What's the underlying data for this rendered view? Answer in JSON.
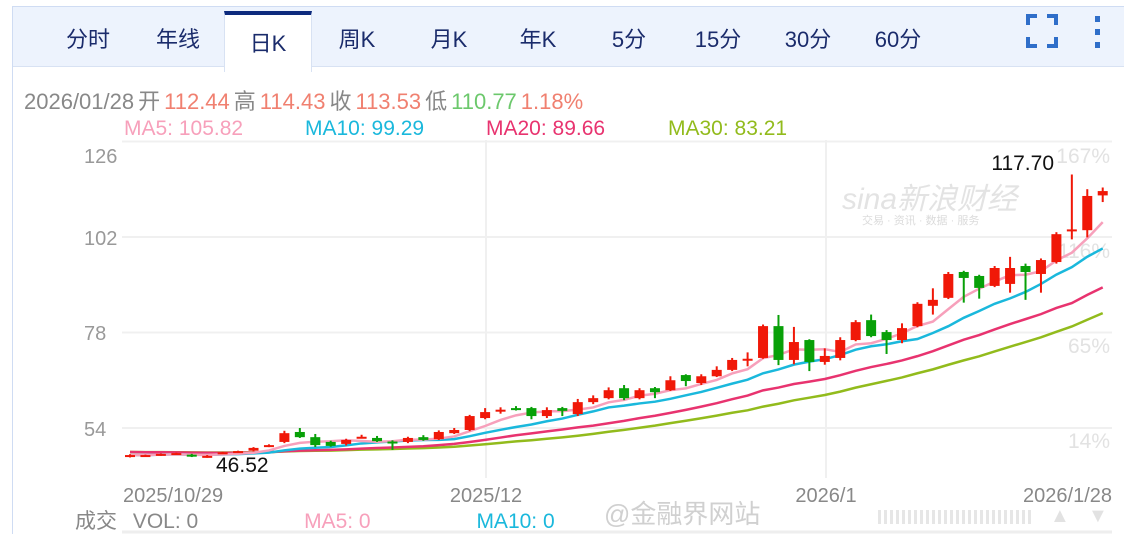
{
  "tabs": [
    {
      "label": "分时"
    },
    {
      "label": "年线"
    },
    {
      "label": "日K",
      "active": true
    },
    {
      "label": "周K"
    },
    {
      "label": "月K"
    },
    {
      "label": "年K"
    },
    {
      "label": "5分"
    },
    {
      "label": "15分"
    },
    {
      "label": "30分"
    },
    {
      "label": "60分"
    }
  ],
  "icons": {
    "fullscreen": "fullscreen-icon",
    "more": "more-vertical-icon"
  },
  "info": {
    "date": "2026/01/28",
    "open_label": "开",
    "open": "112.44",
    "high_label": "高",
    "high": "114.43",
    "close_label": "收",
    "close": "113.53",
    "low_label": "低",
    "low": "110.77",
    "change": "1.18%"
  },
  "ma": {
    "ma5": "MA5: 105.82",
    "ma10": "MA10: 99.29",
    "ma20": "MA20: 89.66",
    "ma30": "MA30: 83.21"
  },
  "colors": {
    "up": "#f01808",
    "down": "#08a008",
    "ma5": "#f7a0bb",
    "ma10": "#1ab8dc",
    "ma20": "#e8336f",
    "ma30": "#92bb1c",
    "tab_active": "#0d2a7d"
  },
  "chart_data": {
    "type": "candlestick",
    "y_ticks": [
      "126",
      "102",
      "78",
      "54"
    ],
    "pct_ticks": [
      "167%",
      "116%",
      "65%",
      "14%"
    ],
    "x_ticks": [
      "2025/10/29",
      "2025/12",
      "2026/1",
      "2026/1/28"
    ],
    "max_label": "117.70",
    "min_label": "46.52",
    "ylim": [
      44,
      130
    ],
    "ohlc": [
      [
        47.0,
        47.4,
        46.6,
        47.2
      ],
      [
        47.1,
        47.3,
        46.9,
        47.2
      ],
      [
        47.3,
        47.6,
        47.0,
        47.5
      ],
      [
        47.6,
        47.8,
        47.3,
        47.7
      ],
      [
        47.3,
        47.5,
        46.7,
        46.8
      ],
      [
        46.9,
        47.2,
        46.52,
        47.0
      ],
      [
        47.8,
        48.0,
        47.5,
        47.9
      ],
      [
        48.1,
        48.3,
        47.9,
        48.2
      ],
      [
        48.3,
        49.2,
        48.1,
        49.0
      ],
      [
        49.4,
        49.9,
        49.2,
        49.7
      ],
      [
        50.5,
        53.3,
        50.2,
        52.7
      ],
      [
        53.0,
        54.0,
        51.5,
        51.7
      ],
      [
        51.7,
        52.5,
        49.2,
        49.7
      ],
      [
        50.5,
        50.8,
        49.3,
        49.5
      ],
      [
        50.0,
        51.3,
        49.6,
        51.0
      ],
      [
        51.7,
        52.3,
        51.5,
        51.8
      ],
      [
        51.5,
        52.0,
        50.5,
        50.7
      ],
      [
        50.6,
        50.9,
        48.5,
        50.4
      ],
      [
        50.5,
        51.8,
        50.2,
        51.5
      ],
      [
        51.7,
        52.2,
        50.8,
        51.0
      ],
      [
        51.2,
        53.4,
        51.0,
        53.0
      ],
      [
        52.7,
        54.0,
        52.5,
        53.5
      ],
      [
        53.5,
        57.3,
        53.2,
        57.0
      ],
      [
        56.5,
        59.0,
        56.2,
        58.0
      ],
      [
        58.4,
        59.2,
        57.6,
        58.6
      ],
      [
        59.0,
        59.5,
        58.4,
        58.8
      ],
      [
        59.0,
        59.3,
        56.2,
        57.0
      ],
      [
        57.0,
        59.2,
        56.5,
        58.5
      ],
      [
        59.0,
        59.3,
        57.0,
        58.3
      ],
      [
        57.5,
        61.3,
        57.0,
        60.5
      ],
      [
        60.5,
        62.2,
        60.0,
        61.5
      ],
      [
        61.5,
        64.2,
        61.2,
        63.5
      ],
      [
        64.0,
        64.8,
        61.0,
        61.5
      ],
      [
        61.5,
        64.0,
        61.2,
        63.5
      ],
      [
        64.0,
        64.3,
        61.5,
        63.0
      ],
      [
        63.5,
        67.0,
        63.3,
        66.0
      ],
      [
        67.3,
        67.5,
        64.5,
        65.8
      ],
      [
        65.3,
        67.5,
        64.8,
        67.0
      ],
      [
        67.0,
        69.5,
        66.8,
        68.6
      ],
      [
        68.6,
        71.6,
        68.3,
        71.1
      ],
      [
        71.2,
        73.0,
        69.5,
        71.4
      ],
      [
        71.6,
        80.0,
        71.4,
        79.6
      ],
      [
        79.6,
        82.4,
        69.8,
        71.1
      ],
      [
        71.1,
        79.4,
        70.0,
        75.6
      ],
      [
        76.1,
        76.3,
        68.3,
        70.6
      ],
      [
        70.6,
        74.0,
        69.9,
        72.1
      ],
      [
        71.6,
        76.8,
        71.0,
        76.1
      ],
      [
        76.1,
        81.1,
        75.8,
        80.6
      ],
      [
        81.1,
        82.5,
        76.8,
        77.1
      ],
      [
        78.1,
        78.6,
        72.6,
        76.1
      ],
      [
        76.1,
        80.3,
        75.3,
        79.1
      ],
      [
        79.6,
        85.6,
        79.3,
        85.2
      ],
      [
        84.7,
        89.1,
        82.5,
        86.2
      ],
      [
        86.7,
        93.2,
        86.4,
        92.7
      ],
      [
        93.2,
        93.5,
        85.5,
        91.7
      ],
      [
        92.2,
        92.5,
        86.5,
        89.2
      ],
      [
        89.7,
        94.7,
        89.4,
        94.2
      ],
      [
        90.2,
        97.0,
        88.0,
        94.2
      ],
      [
        94.7,
        95.3,
        86.2,
        93.2
      ],
      [
        92.7,
        96.6,
        88.0,
        96.2
      ],
      [
        95.7,
        103.2,
        95.3,
        102.7
      ],
      [
        103.5,
        117.7,
        101.4,
        103.9
      ],
      [
        103.7,
        114.0,
        101.9,
        112.3
      ],
      [
        112.44,
        114.43,
        110.77,
        113.53
      ]
    ]
  },
  "volume": {
    "label": "成交",
    "vol": "VOL: 0",
    "ma5": "MA5: 0",
    "ma10": "MA10: 0"
  },
  "watermarks": {
    "sina": "sina新浪财经",
    "sina_sub": "交易 · 资讯 · 数据 · 服务",
    "jrj": "@金融界网站"
  }
}
